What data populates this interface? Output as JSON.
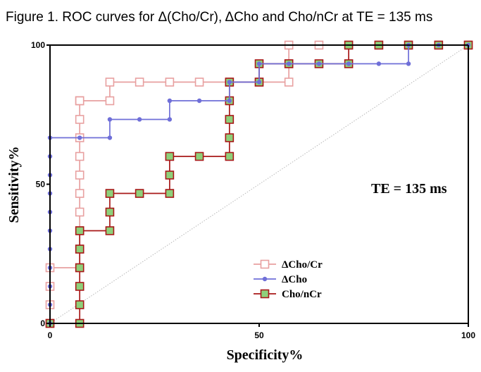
{
  "chart_data": {
    "type": "line",
    "title": "Figure 1.  ROC curves for Δ(Cho/Cr), ΔCho and Cho/nCr at TE = 135 ms",
    "xlabel": "Specificity%",
    "ylabel": "Sensitivity%",
    "xlim": [
      0,
      100
    ],
    "ylim": [
      0,
      100
    ],
    "x_ticks": [
      "0",
      "50",
      "100"
    ],
    "y_ticks": [
      "0",
      "50",
      "100"
    ],
    "annotation": "TE = 135 ms",
    "reference_line": "diagonal",
    "legend_position": "bottom-center",
    "series": [
      {
        "name": "ΔCho/Cr",
        "color": "#e8a0a0",
        "marker": "open-square",
        "x": [
          0,
          0,
          0,
          0,
          7.1,
          7.1,
          7.1,
          7.1,
          7.1,
          7.1,
          7.1,
          7.1,
          7.1,
          7.1,
          7.1,
          7.1,
          14.3,
          14.3,
          21.4,
          28.6,
          35.7,
          42.9,
          50,
          57.1,
          57.1,
          57.1,
          64.3,
          71.4,
          78.6,
          85.7,
          92.9,
          100
        ],
        "y": [
          0,
          6.7,
          13.3,
          20,
          20,
          26.7,
          33.3,
          40,
          46.7,
          53.3,
          60,
          66.7,
          73.3,
          80,
          80,
          80,
          80,
          86.7,
          86.7,
          86.7,
          86.7,
          86.7,
          86.7,
          86.7,
          93.3,
          100,
          100,
          100,
          100,
          100,
          100,
          100
        ]
      },
      {
        "name": "ΔCho",
        "color": "#6f6fd8",
        "marker": "dot",
        "x": [
          0,
          0,
          0,
          0,
          0,
          0,
          0,
          0,
          0,
          0,
          0,
          7.1,
          14.3,
          14.3,
          21.4,
          28.6,
          28.6,
          35.7,
          42.9,
          42.9,
          50,
          50,
          57.1,
          64.3,
          71.4,
          78.6,
          85.7,
          85.7,
          92.9,
          100
        ],
        "y": [
          0,
          6.7,
          13.3,
          20,
          26.7,
          33.3,
          40,
          46.7,
          53.3,
          60,
          66.7,
          66.7,
          66.7,
          73.3,
          73.3,
          73.3,
          80,
          80,
          80,
          86.7,
          86.7,
          93.3,
          93.3,
          93.3,
          93.3,
          93.3,
          93.3,
          100,
          100,
          100
        ]
      },
      {
        "name": "Cho/nCr",
        "color": "#a81818",
        "marker": "filled-square",
        "fill": "#8ed07a",
        "x": [
          0,
          7.1,
          7.1,
          7.1,
          7.1,
          7.1,
          7.1,
          14.3,
          14.3,
          14.3,
          21.4,
          28.6,
          28.6,
          28.6,
          35.7,
          42.9,
          42.9,
          42.9,
          42.9,
          42.9,
          50,
          50,
          57.1,
          64.3,
          71.4,
          71.4,
          78.6,
          85.7,
          92.9,
          100
        ],
        "y": [
          0,
          0,
          6.7,
          13.3,
          20,
          26.7,
          33.3,
          33.3,
          40,
          46.7,
          46.7,
          46.7,
          53.3,
          60,
          60,
          60,
          66.7,
          73.3,
          80,
          86.7,
          86.7,
          93.3,
          93.3,
          93.3,
          93.3,
          100,
          100,
          100,
          100,
          100
        ]
      }
    ]
  }
}
